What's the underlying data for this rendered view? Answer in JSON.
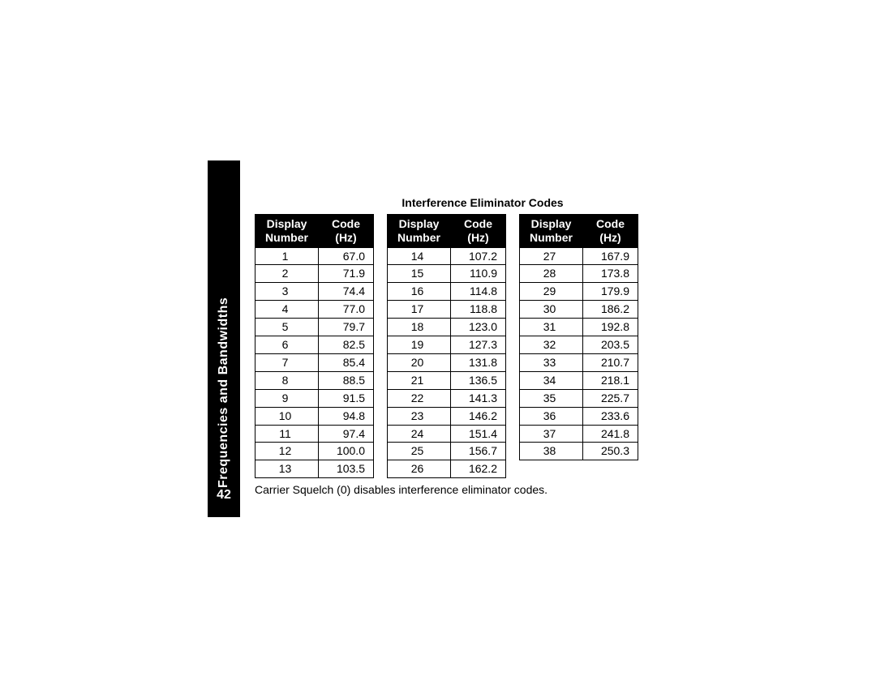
{
  "page": {
    "side_tab_title": "Frequencies and Bandwidths",
    "page_number": "42",
    "section_title": "Interference Eliminator Codes",
    "footnote": "Carrier Squelch (0) disables interference eliminator codes.",
    "background_color": "#ffffff",
    "tab_bg": "#000000",
    "tab_fg": "#ffffff",
    "border_color": "#000000",
    "font_family": "Arial, Helvetica, sans-serif",
    "title_fontsize": 14,
    "cell_fontsize": 14
  },
  "headers": {
    "display_line1": "Display",
    "display_line2": "Number",
    "code_line1": "Code",
    "code_line2": "(Hz)"
  },
  "tables": {
    "column_widths": {
      "display": 78,
      "code": 68
    },
    "t1": [
      {
        "n": "1",
        "v": "67.0"
      },
      {
        "n": "2",
        "v": "71.9"
      },
      {
        "n": "3",
        "v": "74.4"
      },
      {
        "n": "4",
        "v": "77.0"
      },
      {
        "n": "5",
        "v": "79.7"
      },
      {
        "n": "6",
        "v": "82.5"
      },
      {
        "n": "7",
        "v": "85.4"
      },
      {
        "n": "8",
        "v": "88.5"
      },
      {
        "n": "9",
        "v": "91.5"
      },
      {
        "n": "10",
        "v": "94.8"
      },
      {
        "n": "11",
        "v": "97.4"
      },
      {
        "n": "12",
        "v": "100.0"
      },
      {
        "n": "13",
        "v": "103.5"
      }
    ],
    "t2": [
      {
        "n": "14",
        "v": "107.2"
      },
      {
        "n": "15",
        "v": "110.9"
      },
      {
        "n": "16",
        "v": "114.8"
      },
      {
        "n": "17",
        "v": "118.8"
      },
      {
        "n": "18",
        "v": "123.0"
      },
      {
        "n": "19",
        "v": "127.3"
      },
      {
        "n": "20",
        "v": "131.8"
      },
      {
        "n": "21",
        "v": "136.5"
      },
      {
        "n": "22",
        "v": "141.3"
      },
      {
        "n": "23",
        "v": "146.2"
      },
      {
        "n": "24",
        "v": "151.4"
      },
      {
        "n": "25",
        "v": "156.7"
      },
      {
        "n": "26",
        "v": "162.2"
      }
    ],
    "t3": [
      {
        "n": "27",
        "v": "167.9"
      },
      {
        "n": "28",
        "v": "173.8"
      },
      {
        "n": "29",
        "v": "179.9"
      },
      {
        "n": "30",
        "v": "186.2"
      },
      {
        "n": "31",
        "v": "192.8"
      },
      {
        "n": "32",
        "v": "203.5"
      },
      {
        "n": "33",
        "v": "210.7"
      },
      {
        "n": "34",
        "v": "218.1"
      },
      {
        "n": "35",
        "v": "225.7"
      },
      {
        "n": "36",
        "v": "233.6"
      },
      {
        "n": "37",
        "v": "241.8"
      },
      {
        "n": "38",
        "v": "250.3"
      }
    ]
  }
}
